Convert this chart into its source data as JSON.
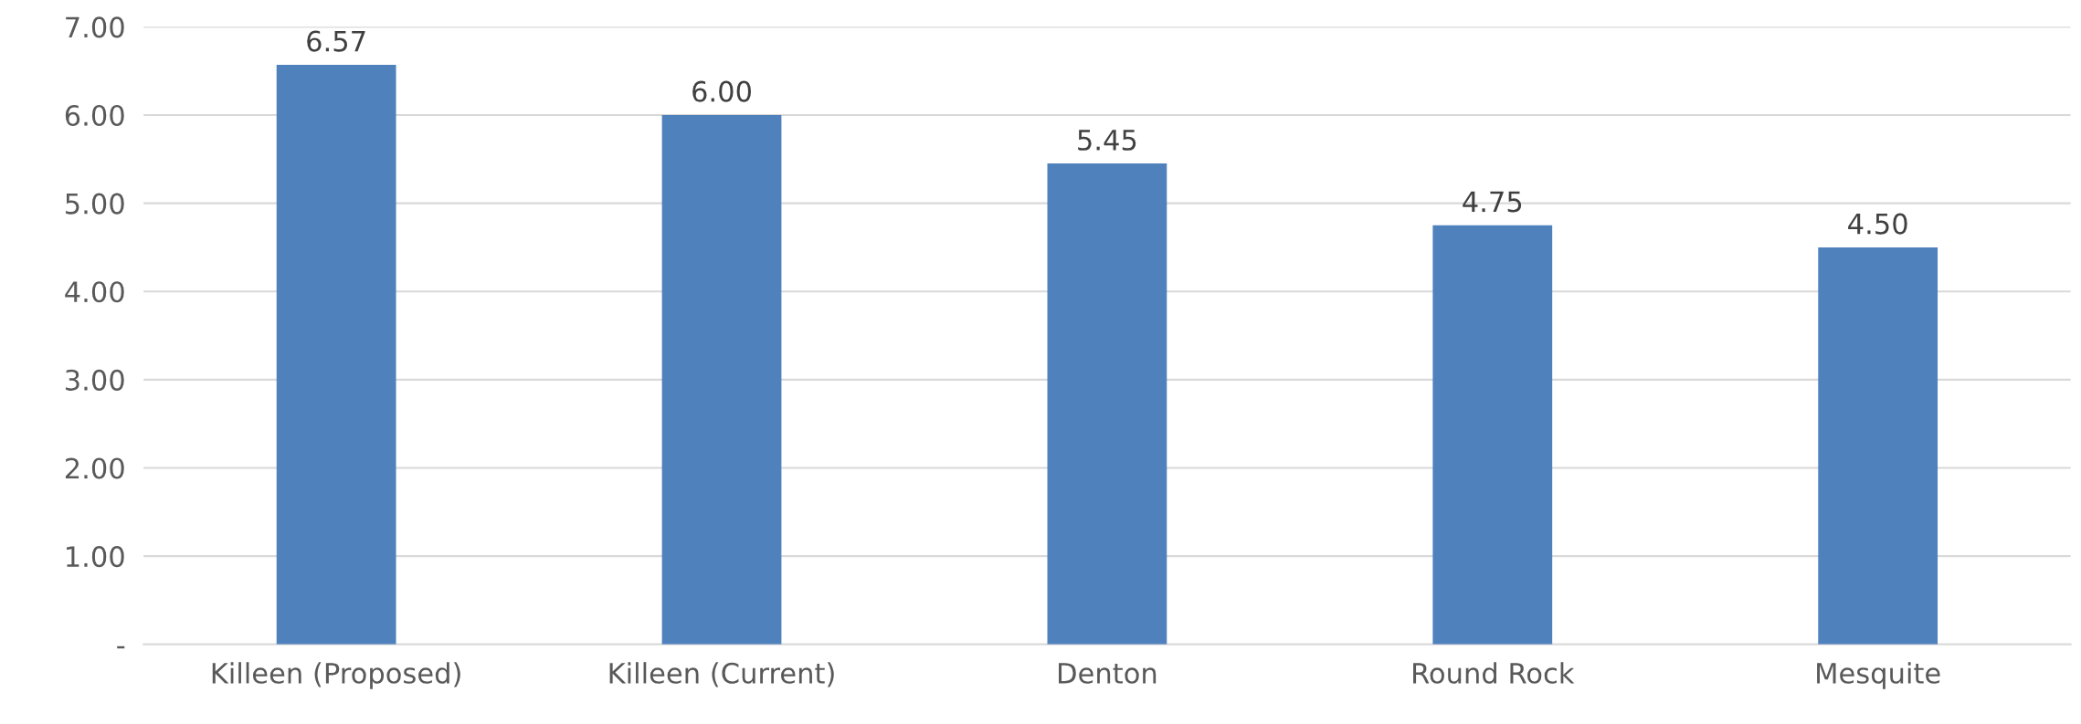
{
  "chart_data": {
    "type": "bar",
    "categories": [
      "Killeen (Proposed)",
      "Killeen (Current)",
      "Denton",
      "Round Rock",
      "Mesquite"
    ],
    "values": [
      6.57,
      6.0,
      5.45,
      4.75,
      4.5
    ],
    "value_labels": [
      "6.57",
      "6.00",
      "5.45",
      "4.75",
      "4.50"
    ],
    "color": "#4f81bd",
    "ylim": [
      0,
      7
    ],
    "yticks": [
      {
        "value": 0,
        "label": "-"
      },
      {
        "value": 1,
        "label": "1.00"
      },
      {
        "value": 2,
        "label": "2.00"
      },
      {
        "value": 3,
        "label": "3.00"
      },
      {
        "value": 4,
        "label": "4.00"
      },
      {
        "value": 5,
        "label": "5.00"
      },
      {
        "value": 6,
        "label": "6.00"
      },
      {
        "value": 7,
        "label": "7.00"
      }
    ],
    "grid": "y",
    "legend": false
  }
}
